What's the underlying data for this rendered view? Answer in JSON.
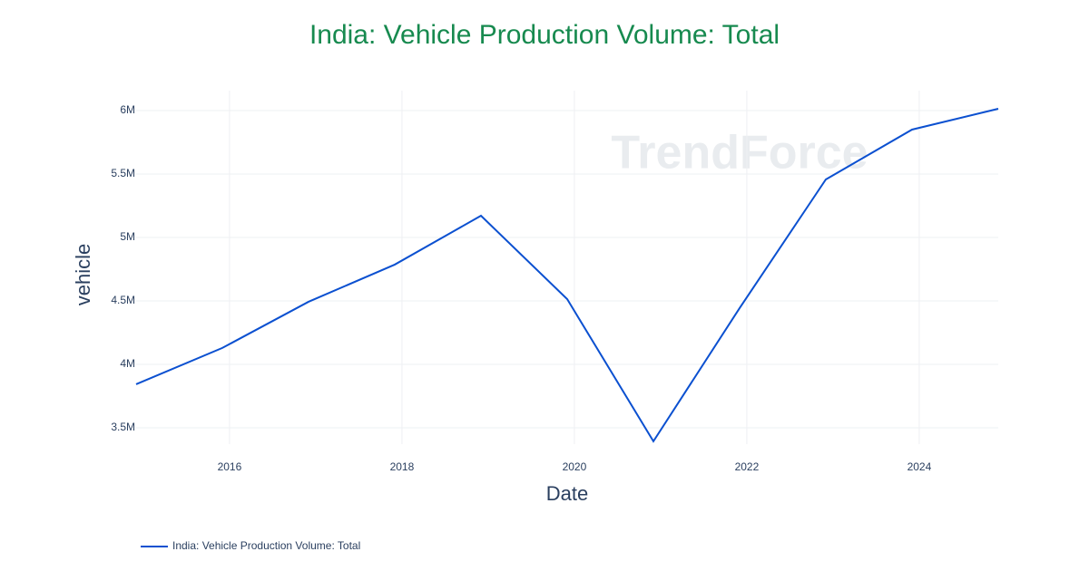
{
  "chart_data": {
    "type": "line",
    "title": "India: Vehicle Production Volume: Total",
    "watermark": "TrendForce",
    "x_label": "Date",
    "y_label": "vehicle",
    "x": [
      "2014-12",
      "2015-12",
      "2016-12",
      "2017-12",
      "2018-12",
      "2019-12",
      "2020-12",
      "2021-12",
      "2022-12",
      "2023-12",
      "2024-12"
    ],
    "series": [
      {
        "name": "India: Vehicle Production Volume: Total",
        "color": "#0b50d0",
        "values": [
          3843000,
          4129000,
          4493000,
          4786000,
          5171000,
          4514000,
          3393000,
          4443000,
          5457000,
          5850000,
          6014000
        ]
      }
    ],
    "xlim": [
      "2014-12",
      "2024-12"
    ],
    "xticks": [
      2016,
      2018,
      2020,
      2022,
      2024
    ],
    "ylim": [
      3371000,
      6157000
    ],
    "yticks": [
      {
        "value": 3500000,
        "label": "3.5M"
      },
      {
        "value": 4000000,
        "label": "4M"
      },
      {
        "value": 4500000,
        "label": "4.5M"
      },
      {
        "value": 5000000,
        "label": "5M"
      },
      {
        "value": 5500000,
        "label": "5.5M"
      },
      {
        "value": 6000000,
        "label": "6M"
      }
    ],
    "grid": true,
    "legend": "bottom-left"
  }
}
